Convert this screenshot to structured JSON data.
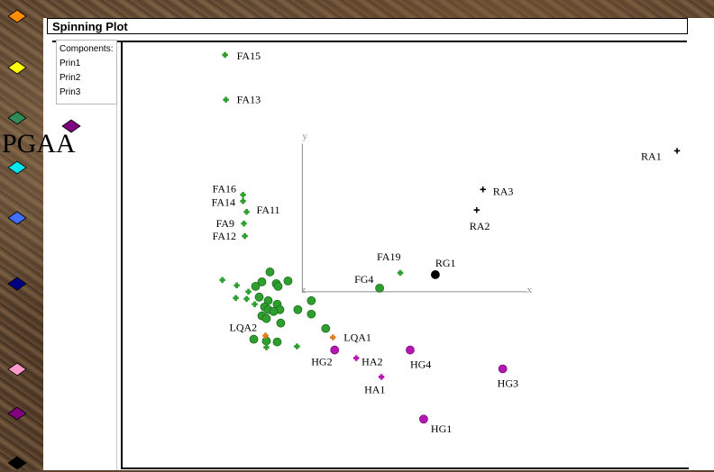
{
  "window": {
    "title": "Spinning Plot",
    "components_label": "Components:",
    "components": [
      "Prin1",
      "Prin2",
      "Prin3"
    ],
    "big_label": "PGAA"
  },
  "colors": {
    "green": "#2e9e2e",
    "magenta": "#b318b3",
    "black": "#000000",
    "orange": "#e07a20",
    "axis": "#8c8c8c"
  },
  "sidebar": {
    "icons": [
      {
        "name": "orange-diamond-icon",
        "color": "#ff8c00"
      },
      {
        "name": "yellow-diamond-icon",
        "color": "#ffff00"
      },
      {
        "name": "teal-diamond-icon",
        "color": "#2e8b57"
      },
      {
        "name": "cyan-diamond-icon",
        "color": "#00e5ee"
      },
      {
        "name": "blue-diamond-icon",
        "color": "#3f6fff"
      },
      {
        "name": "navy-diamond-icon",
        "color": "#000080"
      },
      {
        "name": "pink-diamond-icon",
        "color": "#ff99cc"
      },
      {
        "name": "purple-diamond-icon",
        "color": "#800080"
      },
      {
        "name": "black-diamond-icon",
        "color": "#000000"
      }
    ]
  },
  "chart_data": {
    "type": "scatter",
    "axes": {
      "x_label": "x",
      "y_label": "y",
      "z_label": "z"
    },
    "labeled_points": [
      {
        "label": "FA15",
        "x": -86,
        "y": 264,
        "marker": "plus",
        "color": "green"
      },
      {
        "label": "FA13",
        "x": -85,
        "y": 214,
        "marker": "plus",
        "color": "green"
      },
      {
        "label": "FA16",
        "x": -66,
        "y": 108,
        "marker": "plus",
        "color": "green"
      },
      {
        "label": "FA14",
        "x": -66,
        "y": 101,
        "marker": "plus",
        "color": "green"
      },
      {
        "label": "FA11",
        "x": -62,
        "y": 89,
        "marker": "plus",
        "color": "green"
      },
      {
        "label": "FA9",
        "x": -65,
        "y": 76,
        "marker": "plus",
        "color": "green"
      },
      {
        "label": "FA12",
        "x": -64,
        "y": 62,
        "marker": "plus",
        "color": "green"
      },
      {
        "label": "FA19",
        "x": 109,
        "y": 21,
        "marker": "plus",
        "color": "green"
      },
      {
        "label": "FG4",
        "x": 86,
        "y": 4,
        "marker": "circle",
        "color": "green"
      },
      {
        "label": "RG1",
        "x": 148,
        "y": 19,
        "marker": "circle",
        "color": "black"
      },
      {
        "label": "RA1",
        "x": 417,
        "y": 157,
        "marker": "plus",
        "color": "black"
      },
      {
        "label": "RA3",
        "x": 201,
        "y": 114,
        "marker": "plus",
        "color": "black"
      },
      {
        "label": "RA2",
        "x": 194,
        "y": 91,
        "marker": "plus",
        "color": "black"
      },
      {
        "label": "LQA2",
        "x": -41,
        "y": -49,
        "marker": "plus",
        "color": "orange"
      },
      {
        "label": "LQA1",
        "x": 34,
        "y": -51,
        "marker": "plus",
        "color": "orange"
      },
      {
        "label": "HG2",
        "x": 36,
        "y": -65,
        "marker": "circle",
        "color": "magenta"
      },
      {
        "label": "HA2",
        "x": 60,
        "y": -74,
        "marker": "plus",
        "color": "magenta"
      },
      {
        "label": "HG4",
        "x": 120,
        "y": -65,
        "marker": "circle",
        "color": "magenta"
      },
      {
        "label": "HA1",
        "x": 88,
        "y": -95,
        "marker": "plus",
        "color": "magenta"
      },
      {
        "label": "HG3",
        "x": 223,
        "y": -86,
        "marker": "circle",
        "color": "magenta"
      },
      {
        "label": "HG1",
        "x": 135,
        "y": -142,
        "marker": "circle",
        "color": "magenta"
      }
    ],
    "unlabeled_points": [
      {
        "x": -36,
        "y": 22,
        "marker": "circle",
        "color": "green"
      },
      {
        "x": -45,
        "y": 11,
        "marker": "circle",
        "color": "green"
      },
      {
        "x": -29,
        "y": 9,
        "marker": "circle",
        "color": "green"
      },
      {
        "x": -16,
        "y": 12,
        "marker": "circle",
        "color": "green"
      },
      {
        "x": -52,
        "y": 6,
        "marker": "circle",
        "color": "green"
      },
      {
        "x": -27,
        "y": 6,
        "marker": "circle",
        "color": "green"
      },
      {
        "x": -48,
        "y": -6,
        "marker": "circle",
        "color": "green"
      },
      {
        "x": -38,
        "y": -10,
        "marker": "circle",
        "color": "green"
      },
      {
        "x": -28,
        "y": -14,
        "marker": "circle",
        "color": "green"
      },
      {
        "x": -25,
        "y": -20,
        "marker": "circle",
        "color": "green"
      },
      {
        "x": -42,
        "y": -17,
        "marker": "circle",
        "color": "green"
      },
      {
        "x": -45,
        "y": -27,
        "marker": "circle",
        "color": "green"
      },
      {
        "x": -40,
        "y": -30,
        "marker": "circle",
        "color": "green"
      },
      {
        "x": -24,
        "y": -35,
        "marker": "circle",
        "color": "green"
      },
      {
        "x": -5,
        "y": -20,
        "marker": "circle",
        "color": "green"
      },
      {
        "x": 10,
        "y": -10,
        "marker": "circle",
        "color": "green"
      },
      {
        "x": 10,
        "y": -25,
        "marker": "circle",
        "color": "green"
      },
      {
        "x": 26,
        "y": -41,
        "marker": "circle",
        "color": "green"
      },
      {
        "x": -54,
        "y": -53,
        "marker": "circle",
        "color": "green"
      },
      {
        "x": -40,
        "y": -55,
        "marker": "circle",
        "color": "green"
      },
      {
        "x": -28,
        "y": -56,
        "marker": "circle",
        "color": "green"
      },
      {
        "x": -38,
        "y": -20,
        "marker": "circle",
        "color": "green"
      },
      {
        "x": -32,
        "y": -22,
        "marker": "circle",
        "color": "green"
      },
      {
        "x": -89,
        "y": 13,
        "marker": "plus",
        "color": "green"
      },
      {
        "x": -73,
        "y": 7,
        "marker": "plus",
        "color": "green"
      },
      {
        "x": -60,
        "y": 0,
        "marker": "plus",
        "color": "green"
      },
      {
        "x": -74,
        "y": -7,
        "marker": "plus",
        "color": "green"
      },
      {
        "x": -62,
        "y": -8,
        "marker": "plus",
        "color": "green"
      },
      {
        "x": -53,
        "y": -14,
        "marker": "plus",
        "color": "green"
      },
      {
        "x": -40,
        "y": -62,
        "marker": "plus",
        "color": "green"
      },
      {
        "x": -6,
        "y": -61,
        "marker": "plus",
        "color": "green"
      }
    ],
    "xlim": [
      -200,
      430
    ],
    "ylim": [
      -196,
      279
    ]
  }
}
